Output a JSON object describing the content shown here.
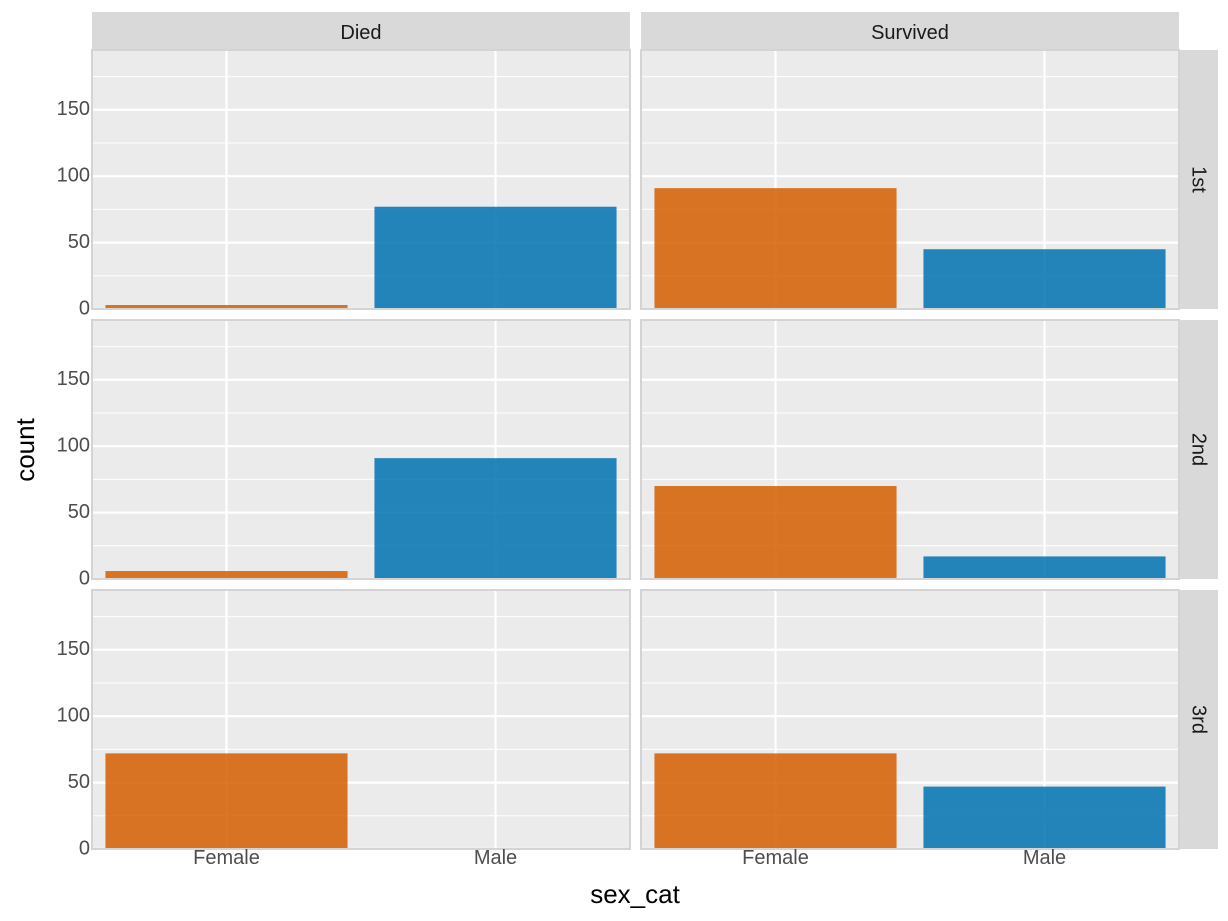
{
  "chart_data": {
    "type": "bar",
    "xlabel": "sex_cat",
    "ylabel": "count",
    "ylim": [
      0,
      195
    ],
    "yticks": [
      0,
      50,
      100,
      150
    ],
    "categories": [
      "Female",
      "Male"
    ],
    "facet_columns": [
      "Died",
      "Survived"
    ],
    "facet_rows": [
      "1st",
      "2nd",
      "3rd"
    ],
    "grid": true,
    "colors": {
      "Female": "#D55E00",
      "Male": "#0072B2",
      "panel_bg": "#EBEBEB",
      "strip_bg": "#D9D9D9"
    },
    "panels": [
      {
        "row": "1st",
        "col": "Died",
        "values": [
          3,
          77
        ]
      },
      {
        "row": "1st",
        "col": "Survived",
        "values": [
          91,
          45
        ]
      },
      {
        "row": "2nd",
        "col": "Died",
        "values": [
          6,
          91
        ]
      },
      {
        "row": "2nd",
        "col": "Survived",
        "values": [
          70,
          17
        ]
      },
      {
        "row": "3rd",
        "col": "Died",
        "values": [
          72,
          0
        ]
      },
      {
        "row": "3rd",
        "col": "Survived",
        "values": [
          72,
          47
        ]
      }
    ]
  }
}
